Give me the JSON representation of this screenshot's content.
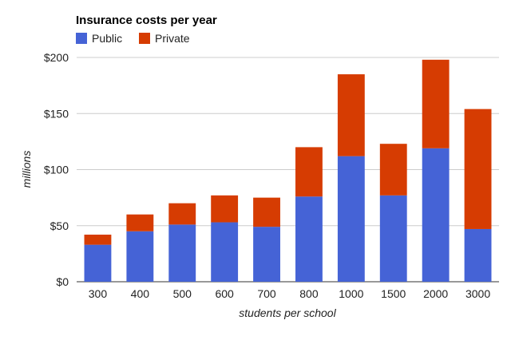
{
  "chart_data": {
    "type": "bar",
    "stacked": true,
    "title": "Insurance costs per year",
    "xlabel": "students per school",
    "ylabel": "millions",
    "categories": [
      "300",
      "400",
      "500",
      "600",
      "700",
      "800",
      "1000",
      "1500",
      "2000",
      "3000"
    ],
    "series": [
      {
        "name": "Public",
        "color": "#4563D6",
        "values": [
          33,
          45,
          51,
          53,
          49,
          76,
          112,
          77,
          119,
          47
        ]
      },
      {
        "name": "Private",
        "color": "#D63C02",
        "values": [
          9,
          15,
          19,
          24,
          26,
          44,
          73,
          46,
          79,
          107
        ]
      }
    ],
    "ylim": [
      0,
      200
    ],
    "yticks": [
      0,
      50,
      100,
      150,
      200
    ],
    "ytick_labels": [
      "$0",
      "$50",
      "$100",
      "$150",
      "$200"
    ],
    "grid": true,
    "legend_position": "top-left"
  }
}
